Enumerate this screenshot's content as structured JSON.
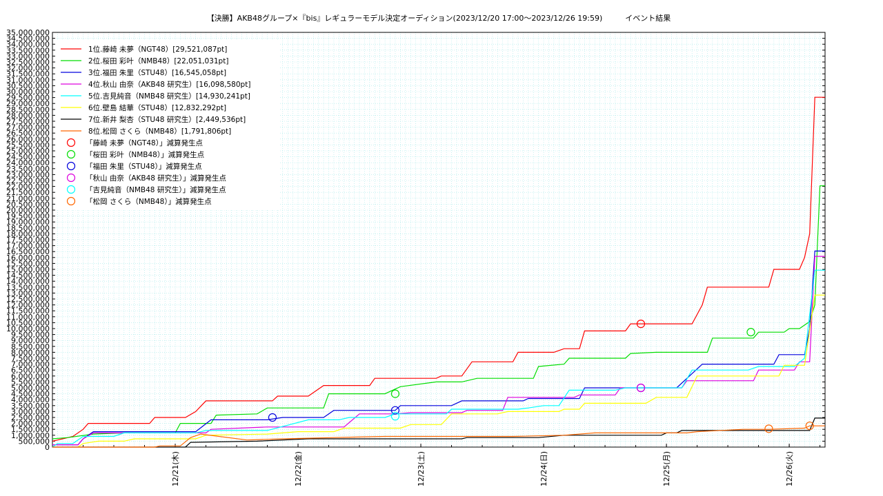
{
  "chart_data": {
    "type": "line",
    "title": "【決勝】AKB48グループ×『bis』レギュラーモデル決定オーディション(2023/12/20 17:00〜2023/12/26 19:59)　　　イベント結果",
    "xlabel": "",
    "ylabel": "",
    "x_range_hours": [
      0,
      171
    ],
    "ylim": [
      0,
      35000000
    ],
    "y_ticks": [
      "0",
      "500,000",
      "1,000,000",
      "1,500,000",
      "2,000,000",
      "2,500,000",
      "3,000,000",
      "3,500,000",
      "4,000,000",
      "4,500,000",
      "5,000,000",
      "5,500,000",
      "6,000,000",
      "6,500,000",
      "7,000,000",
      "7,500,000",
      "8,000,000",
      "8,500,000",
      "9,000,000",
      "9,500,000",
      "10,000,000",
      "10,500,000",
      "11,000,000",
      "11,500,000",
      "12,000,000",
      "12,500,000",
      "13,000,000",
      "13,500,000",
      "14,000,000",
      "14,500,000",
      "15,000,000",
      "15,500,000",
      "16,000,000",
      "16,500,000",
      "17,000,000",
      "17,500,000",
      "18,000,000",
      "18,500,000",
      "19,000,000",
      "19,500,000",
      "20,000,000",
      "20,500,000",
      "21,000,000",
      "21,500,000",
      "22,000,000",
      "22,500,000",
      "23,000,000",
      "23,500,000",
      "24,000,000",
      "24,500,000",
      "25,000,000",
      "25,500,000",
      "26,000,000",
      "26,500,000",
      "27,000,000",
      "27,500,000",
      "28,000,000",
      "28,500,000",
      "29,000,000",
      "29,500,000",
      "30,000,000",
      "30,500,000",
      "31,000,000",
      "31,500,000",
      "32,000,000",
      "32,500,000",
      "33,000,000",
      "33,500,000",
      "34,000,000",
      "34,500,000",
      "35,000,000"
    ],
    "x_ticks": [
      {
        "label": "12/21(木)",
        "hour": 7
      },
      {
        "label": "12/22(金)",
        "hour": 31
      },
      {
        "label": "12/23(土)",
        "hour": 55
      },
      {
        "label": "12/24(日)",
        "hour": 79
      },
      {
        "label": "12/25(月)",
        "hour": 103
      },
      {
        "label": "12/26(火)",
        "hour": 127
      }
    ],
    "grid": true,
    "legend_position": "top-left",
    "series": [
      {
        "name": "1位.藤崎 未夢（NGT48）[29,521,087pt]",
        "color": "#ff0000",
        "points": [
          [
            0,
            500000
          ],
          [
            2,
            700000
          ],
          [
            4,
            900000
          ],
          [
            6,
            1500000
          ],
          [
            7,
            2000000
          ],
          [
            19,
            2000000
          ],
          [
            20,
            2500000
          ],
          [
            26,
            2500000
          ],
          [
            28,
            3000000
          ],
          [
            30,
            3900000
          ],
          [
            43,
            3900000
          ],
          [
            44,
            4300000
          ],
          [
            50,
            4300000
          ],
          [
            53,
            5200000
          ],
          [
            62,
            5200000
          ],
          [
            63,
            5800000
          ],
          [
            75,
            5800000
          ],
          [
            76,
            6000000
          ],
          [
            80,
            6000000
          ],
          [
            82,
            7200000
          ],
          [
            90,
            7200000
          ],
          [
            91,
            8000000
          ],
          [
            98,
            8000000
          ],
          [
            100,
            8300000
          ],
          [
            103,
            8300000
          ],
          [
            104,
            9800000
          ],
          [
            112,
            9800000
          ],
          [
            113,
            10400000
          ],
          [
            125,
            10400000
          ],
          [
            127,
            12000000
          ],
          [
            128,
            13500000
          ],
          [
            140,
            13500000
          ],
          [
            141,
            15000000
          ],
          [
            146,
            15000000
          ],
          [
            147,
            16000000
          ],
          [
            148,
            18000000
          ],
          [
            149,
            29521087
          ],
          [
            151,
            29521087
          ]
        ]
      },
      {
        "name": "2位.桜田 彩叶（NMB48）[22,051,031pt]",
        "color": "#00dd00",
        "points": [
          [
            0,
            700000
          ],
          [
            3,
            800000
          ],
          [
            8,
            1100000
          ],
          [
            14,
            1200000
          ],
          [
            24,
            1200000
          ],
          [
            25,
            2000000
          ],
          [
            31,
            2000000
          ],
          [
            32,
            2700000
          ],
          [
            40,
            2800000
          ],
          [
            42,
            3300000
          ],
          [
            53,
            3300000
          ],
          [
            54,
            4500000
          ],
          [
            65,
            4500000
          ],
          [
            68,
            5100000
          ],
          [
            75,
            5500000
          ],
          [
            80,
            5500000
          ],
          [
            83,
            5800000
          ],
          [
            94,
            5800000
          ],
          [
            95,
            6800000
          ],
          [
            100,
            7000000
          ],
          [
            101,
            7500000
          ],
          [
            112,
            7500000
          ],
          [
            113,
            7900000
          ],
          [
            118,
            8000000
          ],
          [
            128,
            8000000
          ],
          [
            129,
            9200000
          ],
          [
            137,
            9200000
          ],
          [
            138,
            9700000
          ],
          [
            143,
            9700000
          ],
          [
            144,
            10000000
          ],
          [
            146,
            10000000
          ],
          [
            148,
            10600000
          ],
          [
            149,
            12000000
          ],
          [
            150,
            22051031
          ],
          [
            151,
            22051031
          ]
        ]
      },
      {
        "name": "3位.福田 朱里（STU48）[16,545,058pt]",
        "color": "#0000dd",
        "points": [
          [
            0,
            200000
          ],
          [
            5,
            200000
          ],
          [
            6,
            700000
          ],
          [
            8,
            1300000
          ],
          [
            20,
            1300000
          ],
          [
            28,
            1300000
          ],
          [
            31,
            2300000
          ],
          [
            42,
            2300000
          ],
          [
            45,
            2500000
          ],
          [
            53,
            2500000
          ],
          [
            55,
            3100000
          ],
          [
            67,
            3100000
          ],
          [
            68,
            3500000
          ],
          [
            78,
            3500000
          ],
          [
            80,
            3900000
          ],
          [
            92,
            3900000
          ],
          [
            93,
            4100000
          ],
          [
            103,
            4100000
          ],
          [
            104,
            5000000
          ],
          [
            122,
            5000000
          ],
          [
            127,
            7000000
          ],
          [
            141,
            7000000
          ],
          [
            142,
            7800000
          ],
          [
            147,
            7800000
          ],
          [
            148,
            10000000
          ],
          [
            149,
            16545058
          ],
          [
            151,
            16545058
          ]
        ]
      },
      {
        "name": "4位.秋山 由奈（AKB48 研究生）[16,098,580pt]",
        "color": "#dd00dd",
        "points": [
          [
            0,
            200000
          ],
          [
            5,
            200000
          ],
          [
            6,
            700000
          ],
          [
            8,
            1200000
          ],
          [
            20,
            1200000
          ],
          [
            28,
            1200000
          ],
          [
            30,
            1200000
          ],
          [
            31,
            1500000
          ],
          [
            42,
            1700000
          ],
          [
            57,
            1700000
          ],
          [
            60,
            2800000
          ],
          [
            67,
            2800000
          ],
          [
            70,
            2900000
          ],
          [
            80,
            2900000
          ],
          [
            81,
            3100000
          ],
          [
            88,
            3100000
          ],
          [
            89,
            4200000
          ],
          [
            102,
            4200000
          ],
          [
            103,
            4400000
          ],
          [
            110,
            4400000
          ],
          [
            111,
            5000000
          ],
          [
            123,
            5000000
          ],
          [
            124,
            5600000
          ],
          [
            137,
            5600000
          ],
          [
            138,
            6500000
          ],
          [
            145,
            6500000
          ],
          [
            146,
            7200000
          ],
          [
            148,
            7200000
          ],
          [
            149,
            16098580
          ],
          [
            151,
            16098580
          ]
        ]
      },
      {
        "name": "5位.吉見純音（NMB48 研究生）[14,930,241pt]",
        "color": "#00ffff",
        "points": [
          [
            0,
            0
          ],
          [
            1,
            300000
          ],
          [
            4,
            300000
          ],
          [
            6,
            900000
          ],
          [
            12,
            900000
          ],
          [
            14,
            1200000
          ],
          [
            28,
            1200000
          ],
          [
            30,
            1400000
          ],
          [
            42,
            1400000
          ],
          [
            50,
            2300000
          ],
          [
            56,
            2300000
          ],
          [
            58,
            2500000
          ],
          [
            65,
            2500000
          ],
          [
            67,
            2800000
          ],
          [
            77,
            2800000
          ],
          [
            78,
            3200000
          ],
          [
            91,
            3200000
          ],
          [
            93,
            3300000
          ],
          [
            96,
            3500000
          ],
          [
            99,
            3500000
          ],
          [
            101,
            4800000
          ],
          [
            110,
            4800000
          ],
          [
            112,
            5000000
          ],
          [
            123,
            5000000
          ],
          [
            125,
            6500000
          ],
          [
            136,
            6500000
          ],
          [
            138,
            6800000
          ],
          [
            145,
            6800000
          ],
          [
            147,
            7500000
          ],
          [
            149,
            14930241
          ],
          [
            151,
            14930241
          ]
        ]
      },
      {
        "name": "6位.壁島 結華（STU48）[12,832,292pt]",
        "color": "#ffff00",
        "points": [
          [
            5,
            0
          ],
          [
            6,
            300000
          ],
          [
            9,
            500000
          ],
          [
            14,
            500000
          ],
          [
            16,
            700000
          ],
          [
            28,
            700000
          ],
          [
            30,
            1000000
          ],
          [
            42,
            1100000
          ],
          [
            48,
            1300000
          ],
          [
            55,
            1300000
          ],
          [
            57,
            1600000
          ],
          [
            68,
            1600000
          ],
          [
            70,
            1900000
          ],
          [
            76,
            1900000
          ],
          [
            78,
            2800000
          ],
          [
            87,
            2800000
          ],
          [
            89,
            3000000
          ],
          [
            99,
            3000000
          ],
          [
            100,
            3200000
          ],
          [
            103,
            3200000
          ],
          [
            104,
            3700000
          ],
          [
            116,
            3700000
          ],
          [
            118,
            4200000
          ],
          [
            124,
            4200000
          ],
          [
            126,
            6000000
          ],
          [
            136,
            6000000
          ],
          [
            142,
            6000000
          ],
          [
            143,
            6900000
          ],
          [
            147,
            6900000
          ],
          [
            149,
            12832292
          ],
          [
            151,
            12832292
          ]
        ]
      },
      {
        "name": "7位.新井 梨杏（STU48 研究生）[2,449,536pt]",
        "color": "#000000",
        "points": [
          [
            0,
            0
          ],
          [
            26,
            0
          ],
          [
            27,
            400000
          ],
          [
            40,
            500000
          ],
          [
            50,
            700000
          ],
          [
            80,
            700000
          ],
          [
            81,
            800000
          ],
          [
            95,
            800000
          ],
          [
            100,
            1000000
          ],
          [
            119,
            1000000
          ],
          [
            120,
            1200000
          ],
          [
            122,
            1200000
          ],
          [
            123,
            1400000
          ],
          [
            148,
            1400000
          ],
          [
            149,
            2449536
          ],
          [
            151,
            2449536
          ]
        ]
      },
      {
        "name": "8位.松岡 さくら（NMB48）[1,791,806pt]",
        "color": "#ff6600",
        "points": [
          [
            0,
            0
          ],
          [
            20,
            0
          ],
          [
            21,
            100000
          ],
          [
            25,
            100000
          ],
          [
            27,
            800000
          ],
          [
            29,
            1100000
          ],
          [
            38,
            600000
          ],
          [
            45,
            700000
          ],
          [
            55,
            800000
          ],
          [
            65,
            900000
          ],
          [
            85,
            900000
          ],
          [
            90,
            900000
          ],
          [
            100,
            1000000
          ],
          [
            106,
            1200000
          ],
          [
            124,
            1200000
          ],
          [
            126,
            1300000
          ],
          [
            135,
            1500000
          ],
          [
            140,
            1500000
          ],
          [
            147,
            1600000
          ],
          [
            148,
            1791806
          ],
          [
            151,
            1791806
          ]
        ]
      }
    ],
    "deduction_points": [
      {
        "name": "「藤崎 未夢（NGT48）」減算発生点",
        "color": "#ff0000",
        "x": 115,
        "y": 10400000
      },
      {
        "name": "「桜田 彩叶（NMB48）」減算発生点",
        "color": "#00dd00",
        "x": 136.5,
        "y": 9700000,
        "extra": [
          [
            67,
            4500000
          ]
        ]
      },
      {
        "name": "「福田 朱里（STU48）」減算発生点",
        "color": "#0000dd",
        "x": 43,
        "y": 2500000,
        "extra": [
          [
            67,
            3100000
          ],
          [
            115,
            5000000
          ]
        ]
      },
      {
        "name": "「秋山 由奈（AKB48 研究生）」減算発生点",
        "color": "#dd00dd",
        "x": 115,
        "y": 5000000
      },
      {
        "name": "「吉見純音（NMB48 研究生）」減算発生点",
        "color": "#00ffff",
        "x": 67,
        "y": 2600000
      },
      {
        "name": "「松岡 さくら（NMB48）」減算発生点",
        "color": "#ff6600",
        "x": 140,
        "y": 1550000,
        "extra": [
          [
            148,
            1800000
          ]
        ]
      }
    ]
  }
}
